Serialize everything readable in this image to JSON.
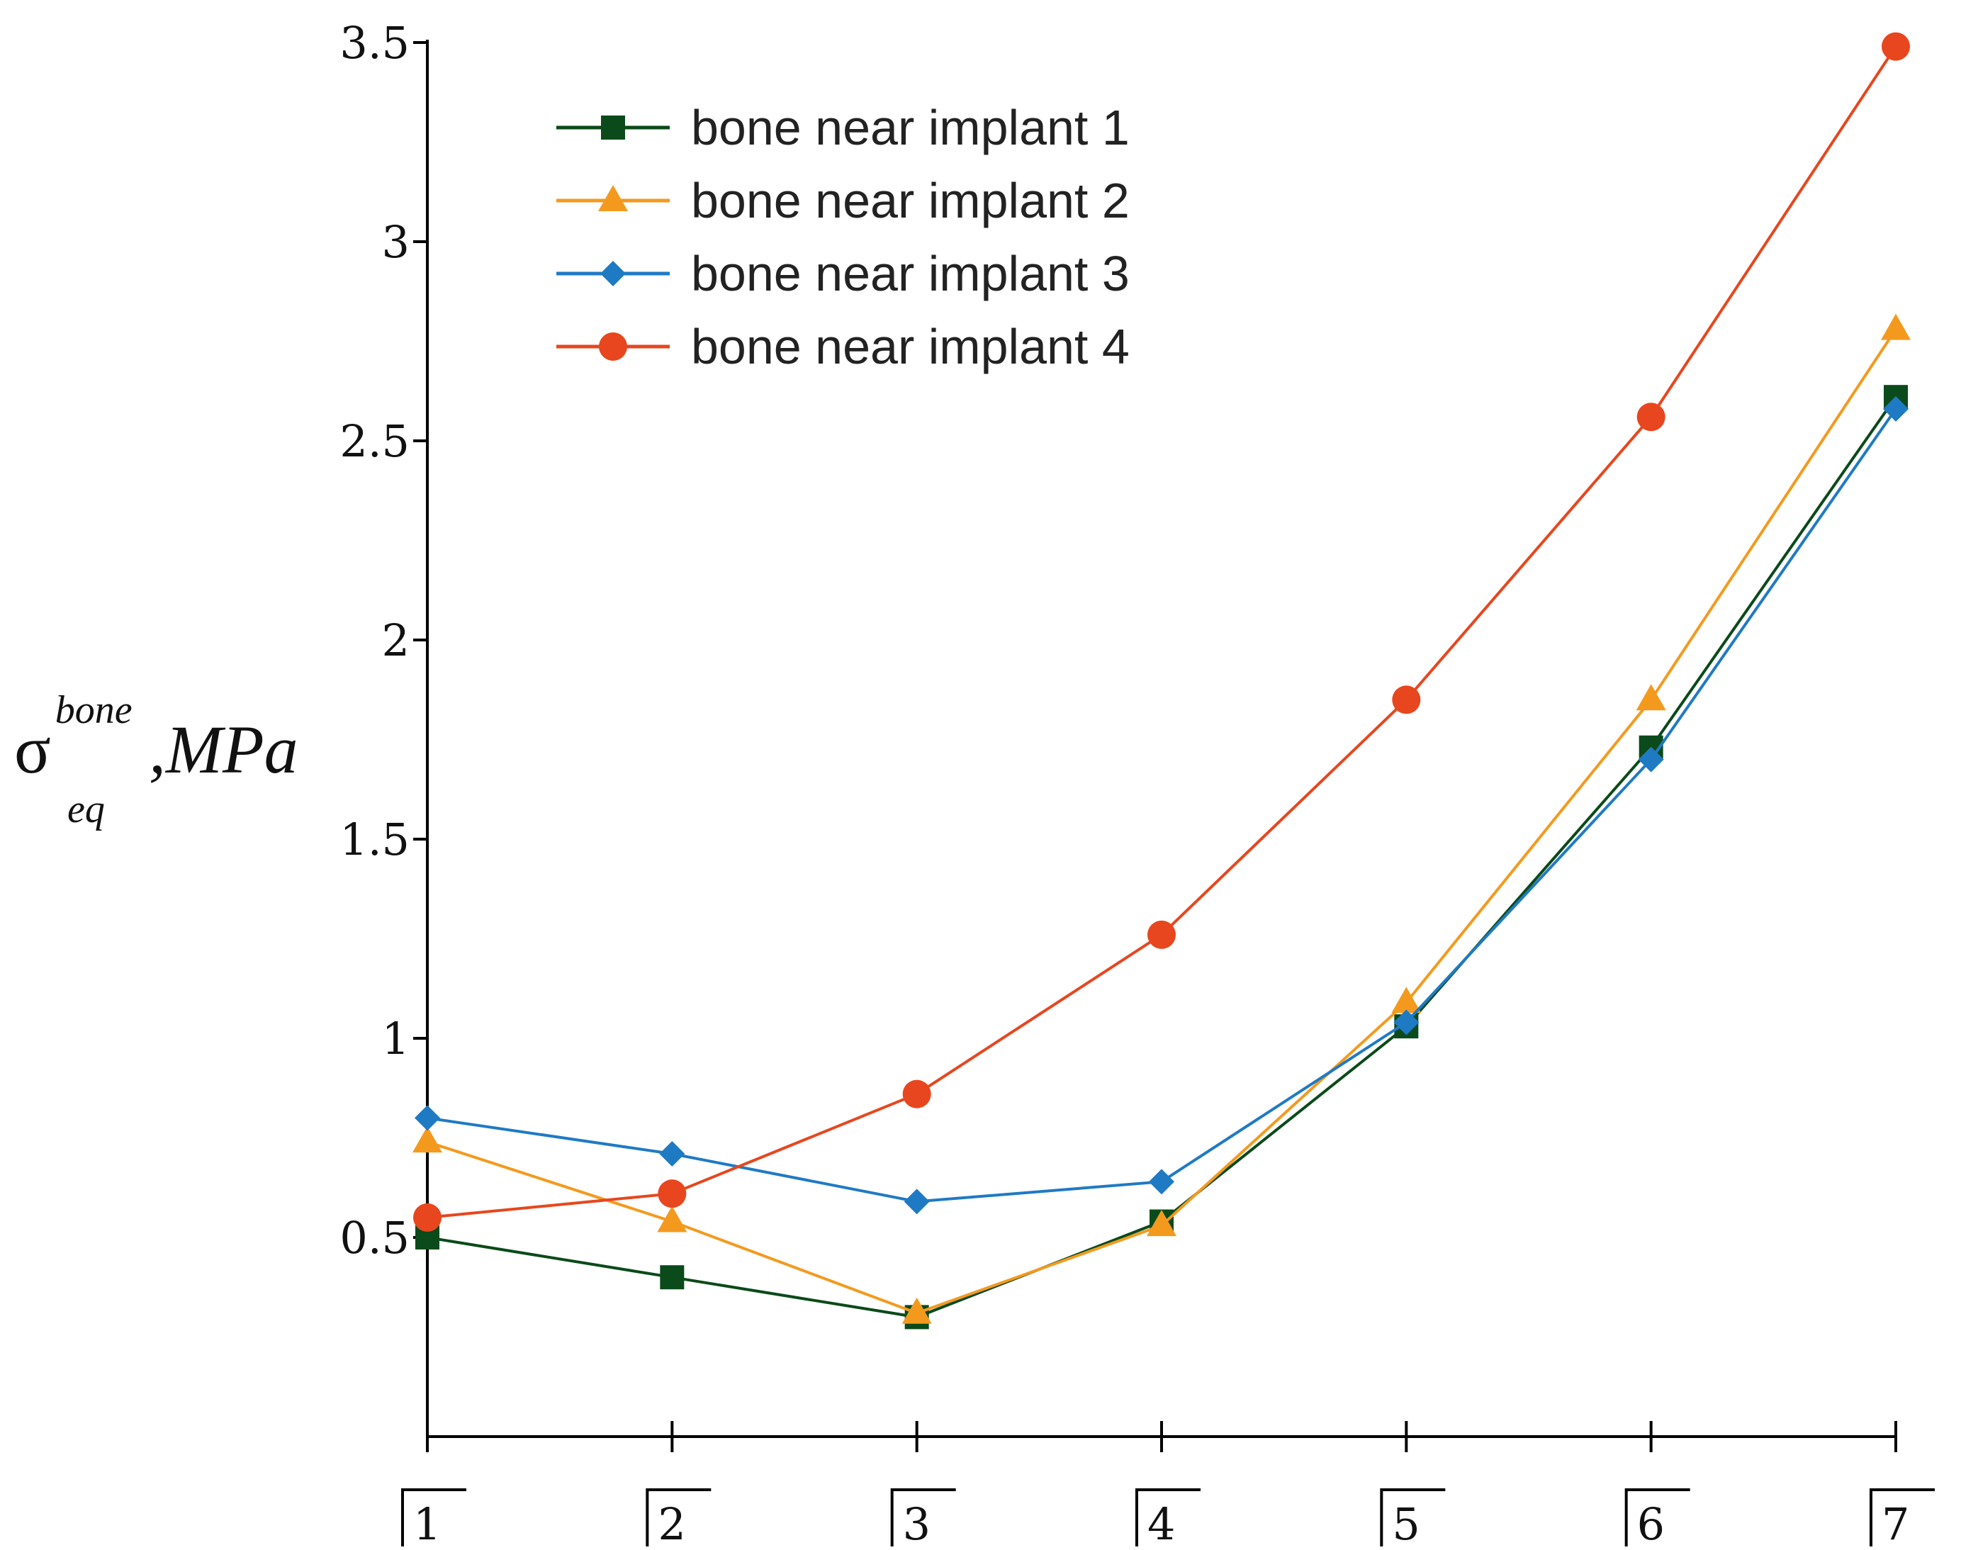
{
  "chart_data": {
    "type": "line",
    "title": "",
    "xlabel": "",
    "ylabel": {
      "symbol": "σ",
      "superscript": "bone",
      "subscript": "eq",
      "unit": ",MPa"
    },
    "categories": [
      "1",
      "2",
      "3",
      "4",
      "5",
      "6",
      "7"
    ],
    "ylim": [
      0,
      3.5
    ],
    "yticks": [
      "0.5",
      "1",
      "1.5",
      "2",
      "2.5",
      "3",
      "3.5"
    ],
    "grid": false,
    "legend_position": "top-left",
    "series": [
      {
        "name": "bone near implant 1",
        "color": "#0b4a1a",
        "marker": "square",
        "values": [
          0.5,
          0.4,
          0.3,
          0.54,
          1.03,
          1.73,
          2.61
        ]
      },
      {
        "name": "bone near implant 2",
        "color": "#f39a1e",
        "marker": "triangle",
        "values": [
          0.74,
          0.54,
          0.31,
          0.53,
          1.09,
          1.85,
          2.78
        ]
      },
      {
        "name": "bone near implant 3",
        "color": "#1f7ac4",
        "marker": "diamond",
        "values": [
          0.8,
          0.71,
          0.59,
          0.64,
          1.04,
          1.7,
          2.58
        ]
      },
      {
        "name": "bone near implant 4",
        "color": "#e8461e",
        "marker": "circle",
        "values": [
          0.55,
          0.61,
          0.86,
          1.26,
          1.85,
          2.56,
          3.49
        ]
      }
    ]
  }
}
